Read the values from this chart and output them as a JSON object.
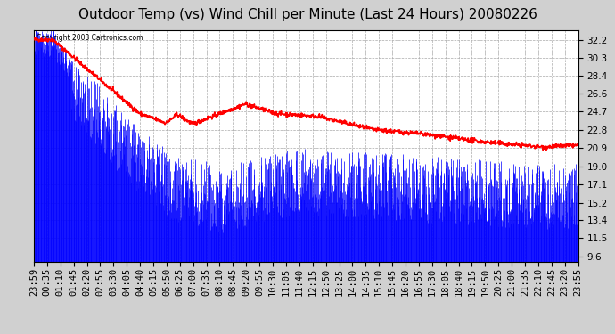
{
  "title": "Outdoor Temp (vs) Wind Chill per Minute (Last 24 Hours) 20080226",
  "copyright_text": "Copyright 2008 Cartronics.com",
  "background_color": "#d0d0d0",
  "plot_background_color": "#ffffff",
  "grid_color": "#aaaaaa",
  "blue_color": "#0000ff",
  "red_color": "#ff0000",
  "yticks": [
    9.6,
    11.5,
    13.4,
    15.2,
    17.1,
    19.0,
    20.9,
    22.8,
    24.7,
    26.6,
    28.4,
    30.3,
    32.2
  ],
  "ylim": [
    9.0,
    33.2
  ],
  "x_labels": [
    "23:59",
    "00:35",
    "01:10",
    "01:45",
    "02:20",
    "02:55",
    "03:30",
    "04:05",
    "04:40",
    "05:15",
    "05:50",
    "06:25",
    "07:00",
    "07:35",
    "08:10",
    "08:45",
    "09:20",
    "09:55",
    "10:30",
    "11:05",
    "11:40",
    "12:15",
    "12:50",
    "13:25",
    "14:00",
    "14:35",
    "15:10",
    "15:45",
    "16:20",
    "16:55",
    "17:30",
    "18:05",
    "18:40",
    "19:15",
    "19:50",
    "20:25",
    "21:00",
    "21:35",
    "22:10",
    "22:45",
    "23:20",
    "23:55"
  ],
  "title_fontsize": 11,
  "tick_fontsize": 7.5,
  "bar_bottom": 9.0
}
